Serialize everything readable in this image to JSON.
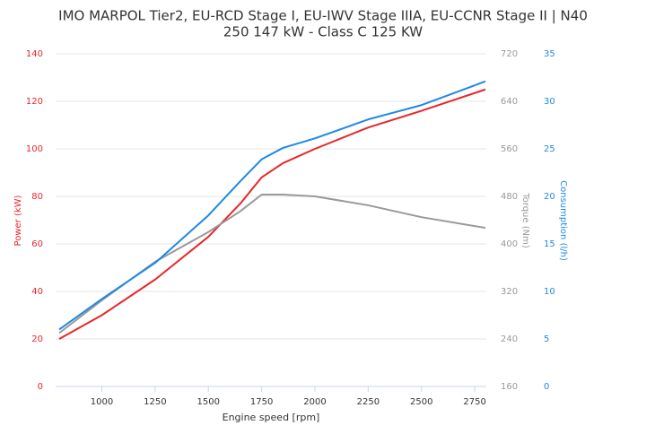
{
  "chart_data": {
    "type": "line",
    "title": "IMO MARPOL Tier2, EU-RCD Stage I, EU-IWV Stage IIIA, EU-CCNR Stage II | N40",
    "subtitle": "250 147 kW - Class C 125 KW",
    "x_label": "Engine speed [rpm]",
    "y_label": "Power (kW)",
    "y2_label": "Torque (Nm)",
    "y3_label": "Consumption (l/h)",
    "x": [
      800,
      1000,
      1250,
      1500,
      1650,
      1750,
      1850,
      2000,
      2250,
      2500,
      2800
    ],
    "xlim": [
      800,
      2800
    ],
    "xticks": [
      1000,
      1250,
      1500,
      1750,
      2000,
      2250,
      2500,
      2750
    ],
    "ylim": [
      0,
      140
    ],
    "yticks": [
      0,
      20,
      40,
      60,
      80,
      100,
      120,
      140
    ],
    "y2lim": [
      160,
      720
    ],
    "y2ticks": [
      160,
      240,
      320,
      400,
      480,
      560,
      640,
      720
    ],
    "y3lim": [
      0,
      35
    ],
    "y3ticks": [
      0,
      5,
      10,
      15,
      20,
      25,
      30,
      35
    ],
    "grid": true,
    "series": [
      {
        "name": "Power",
        "color": "#e8262a",
        "values": [
          20,
          30,
          45,
          63,
          77,
          88,
          94,
          100,
          109,
          116,
          125
        ]
      },
      {
        "name": "Torque",
        "color": "#999999",
        "axis": "y2",
        "values": [
          250,
          305,
          370,
          420,
          455,
          483,
          483,
          480,
          465,
          445,
          427
        ]
      },
      {
        "name": "Consumption",
        "color": "#1f88e5",
        "axis": "y3",
        "values": [
          6,
          9.2,
          13,
          18,
          21.6,
          23.9,
          25.1,
          26.1,
          28.1,
          29.6,
          32.1
        ]
      }
    ]
  }
}
